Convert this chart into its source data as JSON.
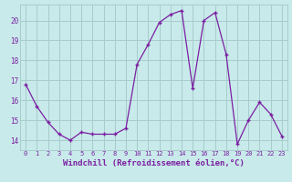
{
  "hours": [
    0,
    1,
    2,
    3,
    4,
    5,
    6,
    7,
    8,
    9,
    10,
    11,
    12,
    13,
    14,
    15,
    16,
    17,
    18,
    19,
    20,
    21,
    22,
    23
  ],
  "values": [
    16.8,
    15.7,
    14.9,
    14.3,
    14.0,
    14.4,
    14.3,
    14.3,
    14.3,
    14.6,
    17.8,
    18.8,
    19.9,
    20.3,
    20.5,
    16.6,
    20.0,
    20.4,
    18.3,
    13.8,
    15.0,
    15.9,
    15.3,
    14.2
  ],
  "line_color": "#7b1fa2",
  "marker": "+",
  "marker_size": 3.5,
  "linewidth": 0.9,
  "bg_color": "#c8eaea",
  "grid_color": "#a8cccc",
  "xlabel": "Windchill (Refroidissement éolien,°C)",
  "xlabel_color": "#7b1fa2",
  "tick_color": "#7b1fa2",
  "ylim": [
    13.5,
    20.8
  ],
  "yticks": [
    14,
    15,
    16,
    17,
    18,
    19,
    20
  ],
  "xtick_fontsize": 5.0,
  "ytick_fontsize": 5.5,
  "xlabel_fontsize": 6.5
}
